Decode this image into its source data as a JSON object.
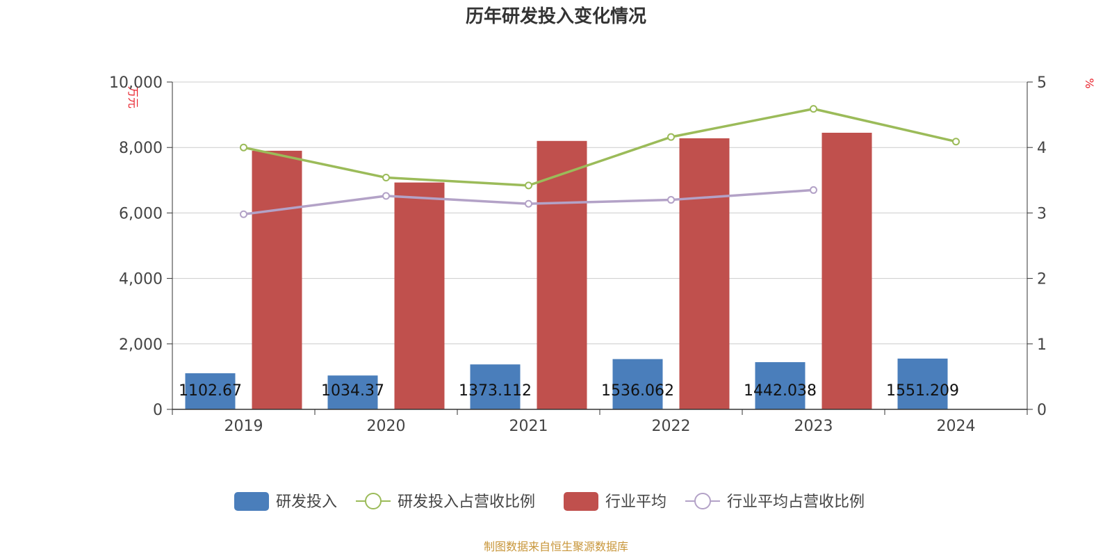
{
  "chart_data": {
    "type": "bar",
    "title": "历年研发投入变化情况",
    "categories": [
      "2019",
      "2020",
      "2021",
      "2022",
      "2023",
      "2024"
    ],
    "y_left": {
      "unit": "万元",
      "min": 0,
      "max": 10000,
      "ticks": [
        0,
        2000,
        4000,
        6000,
        8000,
        10000
      ],
      "tick_labels": [
        "0",
        "2,000",
        "4,000",
        "6,000",
        "8,000",
        "10,000"
      ]
    },
    "y_right": {
      "unit": "%",
      "min": 0,
      "max": 5,
      "ticks": [
        0,
        1,
        2,
        3,
        4,
        5
      ],
      "tick_labels": [
        "0",
        "1",
        "2",
        "3",
        "4",
        "5"
      ]
    },
    "grid": true,
    "legend_position": "bottom",
    "series": [
      {
        "name": "研发投入",
        "type": "bar",
        "axis": "left",
        "color": "#4a7ebb",
        "values": [
          1102.67,
          1034.37,
          1373.112,
          1536.062,
          1442.038,
          1551.209
        ],
        "labels": [
          "1102.67",
          "1034.37",
          "1373.112",
          "1536.062",
          "1442.038",
          "1551.209"
        ]
      },
      {
        "name": "研发投入占营收比例",
        "type": "line",
        "axis": "right",
        "color": "#9bbb59",
        "values": [
          4.0,
          3.54,
          3.42,
          4.16,
          4.59,
          4.09
        ]
      },
      {
        "name": "行业平均",
        "type": "bar",
        "axis": "left",
        "color": "#c0504d",
        "values": [
          7900,
          6930,
          8200,
          8280,
          8450,
          null
        ]
      },
      {
        "name": "行业平均占营收比例",
        "type": "line",
        "axis": "right",
        "color": "#b3a2c7",
        "values": [
          2.98,
          3.26,
          3.14,
          3.2,
          3.35,
          null
        ]
      }
    ],
    "source": "制图数据来自恒生聚源数据库"
  }
}
